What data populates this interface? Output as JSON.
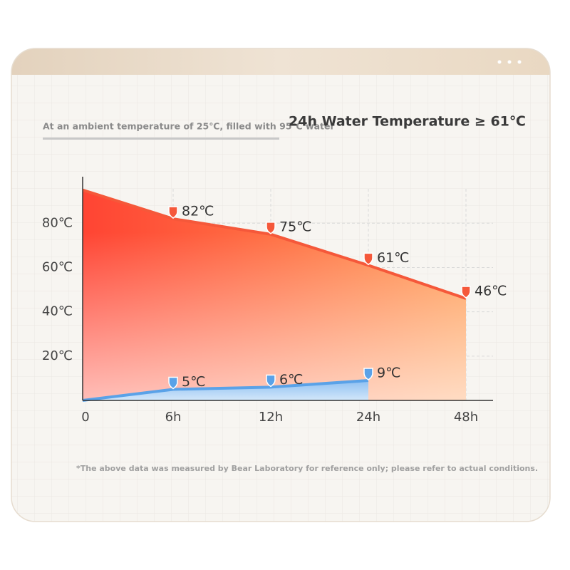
{
  "chart_data": {
    "type": "area",
    "title": "24h Water Temperature ≥ 61℃",
    "subtitle": "At an ambient temperature of 25℃, filled with 95℃ water",
    "footnote": "*The above data was measured by Bear Laboratory for reference only; please refer to actual conditions.",
    "categories": [
      "0",
      "6h",
      "12h",
      "24h",
      "48h"
    ],
    "series": [
      {
        "color": "#f5583a",
        "values": [
          95,
          82,
          75,
          61,
          46
        ],
        "value_labels": [
          null,
          "82℃",
          "75℃",
          "61℃",
          "46℃"
        ]
      },
      {
        "color": "#5aa2e8",
        "values": [
          0,
          5,
          6,
          9,
          null
        ],
        "value_labels": [
          null,
          "5℃",
          "6℃",
          "9℃",
          null
        ]
      }
    ],
    "ylim": [
      0,
      101
    ],
    "yticks": [
      {
        "value": 20,
        "label": "20℃"
      },
      {
        "value": 40,
        "label": "40℃"
      },
      {
        "value": 60,
        "label": "60℃"
      },
      {
        "value": 80,
        "label": "80℃"
      }
    ],
    "grid": true
  }
}
